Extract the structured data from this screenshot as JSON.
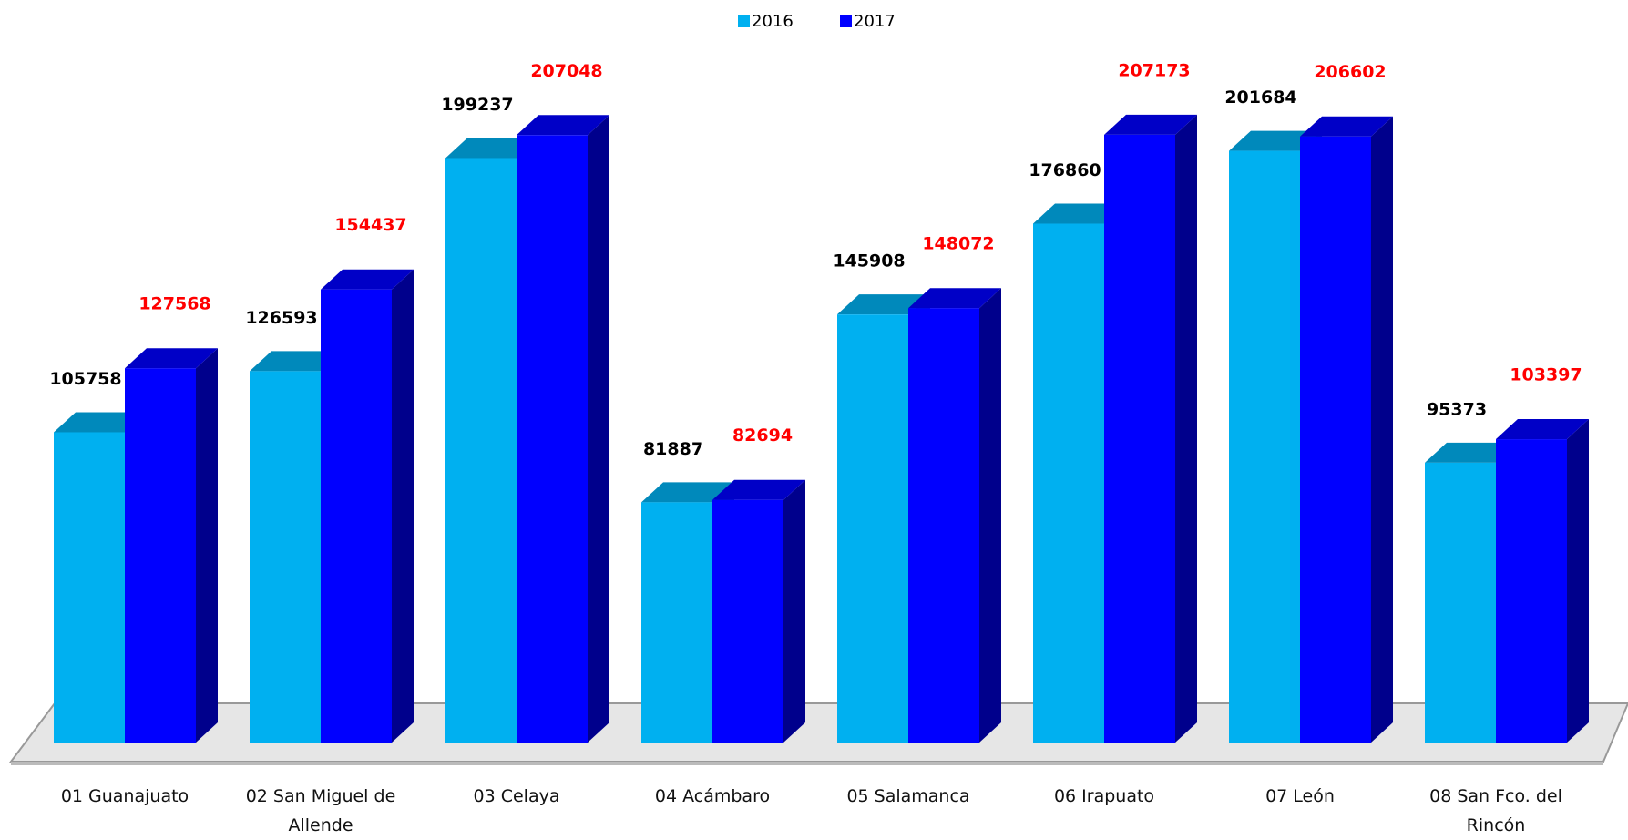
{
  "chart_data": {
    "type": "bar3d",
    "categories": [
      "01 Guanajuato",
      "02 San Miguel de Allende",
      "03 Celaya",
      "04 Acámbaro",
      "05 Salamanca",
      "06 Irapuato",
      "07 León",
      "08 San Fco. del Rincón"
    ],
    "series": [
      {
        "name": "2016",
        "color": "#00b0f0",
        "label_color": "#000000",
        "values": [
          105758,
          126593,
          199237,
          81887,
          145908,
          176860,
          201684,
          95373
        ]
      },
      {
        "name": "2017",
        "color": "#0000ff",
        "label_color": "#ff0000",
        "values": [
          127568,
          154437,
          207048,
          82694,
          148072,
          207173,
          206602,
          103397
        ]
      }
    ],
    "ylim": [
      0,
      250000
    ],
    "legend": "top"
  }
}
